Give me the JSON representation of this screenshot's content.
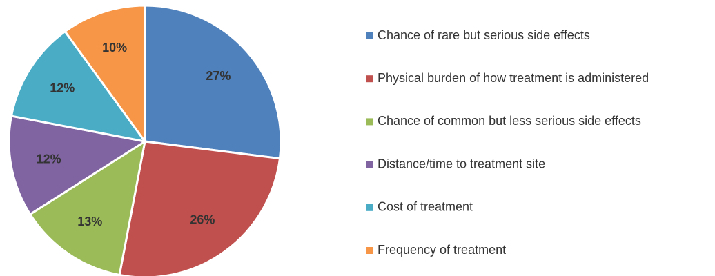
{
  "chart_data": {
    "type": "pie",
    "categories": [
      "Chance of rare but serious side effects",
      "Physical burden of how treatment is administered",
      "Chance of common but less serious side effects",
      "Distance/time to treatment site",
      "Cost of treatment",
      "Frequency of treatment"
    ],
    "values": [
      27,
      26,
      13,
      12,
      12,
      10
    ],
    "value_labels": [
      "27%",
      "26%",
      "13%",
      "12%",
      "12%",
      "10%"
    ],
    "colors": [
      "#4f81bd",
      "#c0504d",
      "#9bbb59",
      "#8064a2",
      "#4bacc6",
      "#f79646"
    ],
    "legend": "right"
  }
}
